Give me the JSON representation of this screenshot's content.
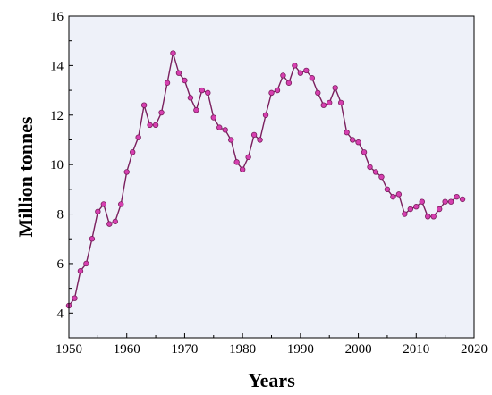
{
  "chart_data": {
    "type": "line",
    "title": "",
    "xlabel": "Years",
    "ylabel": "Million tonnes",
    "xlim": [
      1950,
      2020
    ],
    "ylim": [
      3,
      16
    ],
    "xticks": [
      1950,
      1960,
      1970,
      1980,
      1990,
      2000,
      2010,
      2020
    ],
    "yticks": [
      4,
      6,
      8,
      10,
      12,
      14,
      16
    ],
    "grid": false,
    "legend": "none",
    "colors": {
      "line": "#7a1f5e",
      "marker": "#d63fb0",
      "marker_edge": "#7a1f5e",
      "plot_background": "#eef1f9"
    },
    "series": [
      {
        "x": [
          1950,
          1951,
          1952,
          1953,
          1954,
          1955,
          1956,
          1957,
          1958,
          1959,
          1960,
          1961,
          1962,
          1963,
          1964,
          1965,
          1966,
          1967,
          1968,
          1969,
          1970,
          1971,
          1972,
          1973,
          1974,
          1975,
          1976,
          1977,
          1978,
          1979,
          1980,
          1981,
          1982,
          1983,
          1984,
          1985,
          1986,
          1987,
          1988,
          1989,
          1990,
          1991,
          1992,
          1993,
          1994,
          1995,
          1996,
          1997,
          1998,
          1999,
          2000,
          2001,
          2002,
          2003,
          2004,
          2005,
          2006,
          2007,
          2008,
          2009,
          2010,
          2011,
          2012,
          2013,
          2014,
          2015,
          2016,
          2017,
          2018
        ],
        "values": [
          4.3,
          4.6,
          5.7,
          6.0,
          7.0,
          8.1,
          8.4,
          7.6,
          7.7,
          8.4,
          9.7,
          10.5,
          11.1,
          12.4,
          11.6,
          11.6,
          12.1,
          13.3,
          14.5,
          13.7,
          13.4,
          12.7,
          12.2,
          13.0,
          12.9,
          11.9,
          11.5,
          11.4,
          11.0,
          10.1,
          9.8,
          10.3,
          11.2,
          11.0,
          12.0,
          12.9,
          13.0,
          13.6,
          13.3,
          14.0,
          13.7,
          13.8,
          13.5,
          12.9,
          12.4,
          12.5,
          13.1,
          12.5,
          11.3,
          11.0,
          10.9,
          10.5,
          9.9,
          9.7,
          9.5,
          9.0,
          8.7,
          8.8,
          8.0,
          8.2,
          8.3,
          8.5,
          7.9,
          7.9,
          8.2,
          8.5,
          8.5,
          8.7,
          8.6
        ]
      }
    ]
  }
}
